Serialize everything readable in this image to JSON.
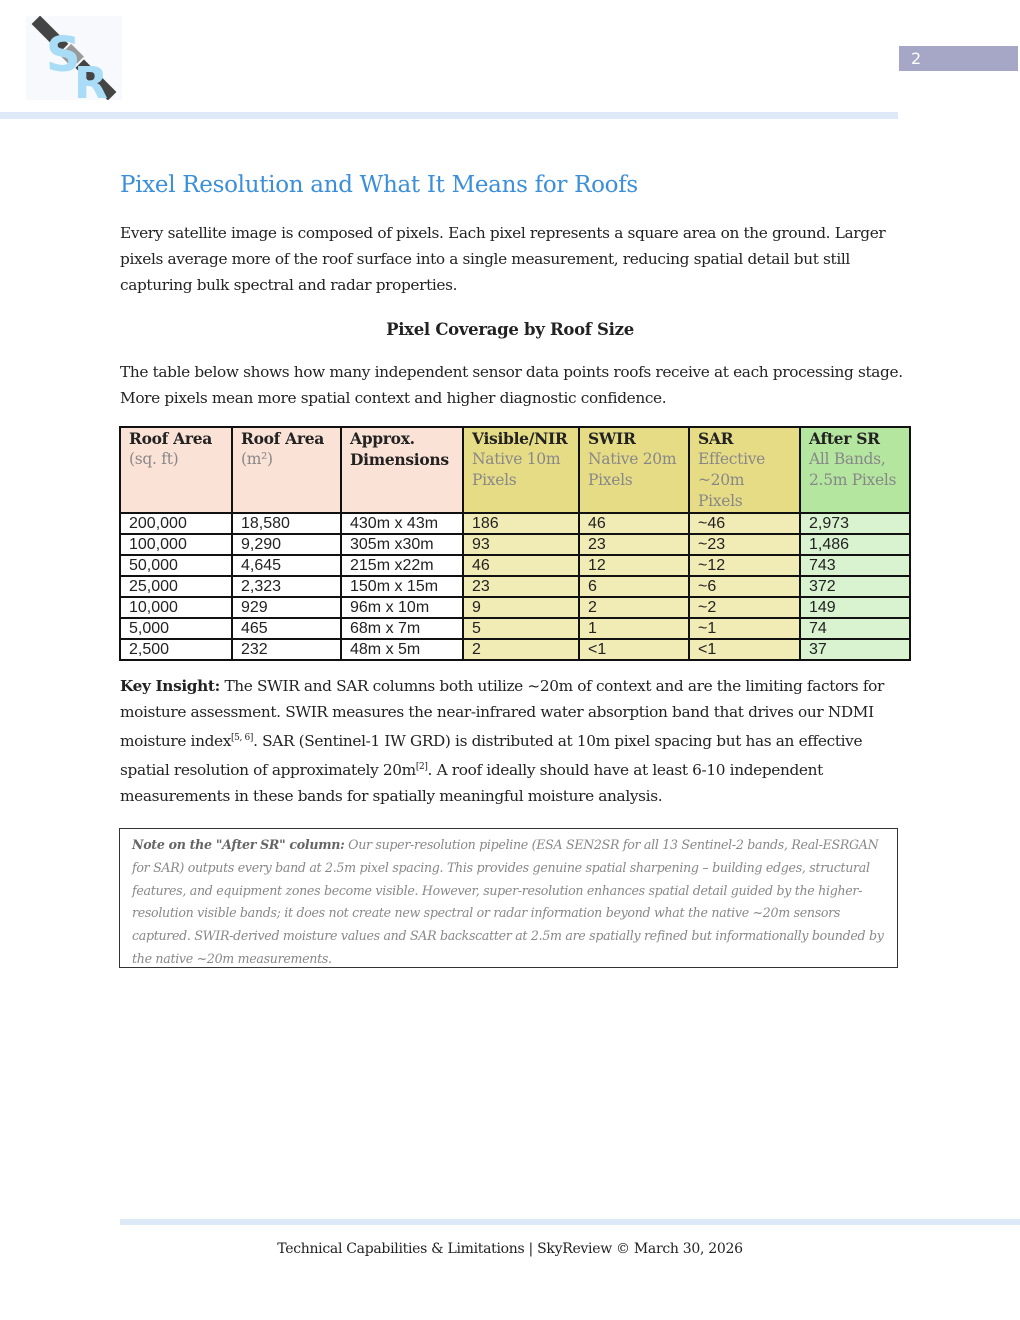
{
  "header": {
    "logo_text": "SR",
    "page_number": "2"
  },
  "title": "Pixel Resolution and What It Means for Roofs",
  "intro": "Every satellite image is composed of pixels. Each pixel represents a square area on the ground. Larger pixels average more of the roof surface into a single measurement, reducing spatial detail but still capturing bulk spectral and radar properties.",
  "subheading": "Pixel Coverage by Roof Size",
  "table_intro": "The table below shows how many independent sensor data points roofs receive at each processing stage. More pixels mean more spatial context and higher diagnostic confidence.",
  "table": {
    "headers": [
      {
        "title": "Roof Area",
        "sub": "(sq. ft)"
      },
      {
        "title": "Roof Area",
        "sub": "(m²)"
      },
      {
        "title": "Approx. Dimensions",
        "sub": ""
      },
      {
        "title": "Visible/NIR",
        "sub": "Native 10m Pixels"
      },
      {
        "title": "SWIR",
        "sub": "Native 20m Pixels"
      },
      {
        "title": "SAR",
        "sub": "Effective ~20m Pixels"
      },
      {
        "title": "After SR",
        "sub": "All Bands, 2.5m Pixels"
      }
    ],
    "rows": [
      [
        "200,000",
        "18,580",
        "430m x 43m",
        "186",
        "46",
        "~46",
        "2,973"
      ],
      [
        "100,000",
        "9,290",
        "305m x30m",
        "93",
        "23",
        "~23",
        "1,486"
      ],
      [
        "50,000",
        "4,645",
        "215m x22m",
        "46",
        "12",
        "~12",
        "743"
      ],
      [
        "25,000",
        "2,323",
        "150m x 15m",
        "23",
        "6",
        "~6",
        "372"
      ],
      [
        "10,000",
        "929",
        "96m x 10m",
        "9",
        "2",
        "~2",
        "149"
      ],
      [
        "5,000",
        "465",
        "68m x 7m",
        "5",
        "1",
        "~1",
        "74"
      ],
      [
        "2,500",
        "232",
        "48m x 5m",
        "2",
        "<1",
        "<1",
        "37"
      ]
    ]
  },
  "insight": {
    "label": "Key Insight:",
    "part1": " The SWIR and SAR columns both utilize ~20m of context and are the limiting factors for moisture assessment. SWIR measures the near-infrared water absorption band that drives our NDMI moisture index",
    "ref1": "[5, 6]",
    "part2": ". SAR (Sentinel-1 IW GRD) is distributed at 10m pixel spacing but has an effective spatial resolution of approximately 20m",
    "ref2": "[2]",
    "part3": ". A roof ideally should have at least 6-10 independent measurements in these bands for spatially meaningful moisture analysis."
  },
  "note": {
    "label": "Note on the \"After SR\" column:",
    "text": " Our super-resolution pipeline (ESA SEN2SR for all 13 Sentinel-2 bands, Real-ESRGAN for SAR) outputs every band at 2.5m pixel spacing. This provides genuine spatial sharpening – building edges, structural features, and equipment zones become visible. However, super-resolution enhances spatial detail guided by the higher-resolution visible bands; it does not create new spectral or radar information beyond what the native ~20m sensors captured. SWIR-derived moisture values and SAR backscatter at 2.5m are spatially refined but informationally bounded by the native ~20m measurements."
  },
  "footer": "Technical Capabilities & Limitations | SkyReview © March 30, 2026"
}
